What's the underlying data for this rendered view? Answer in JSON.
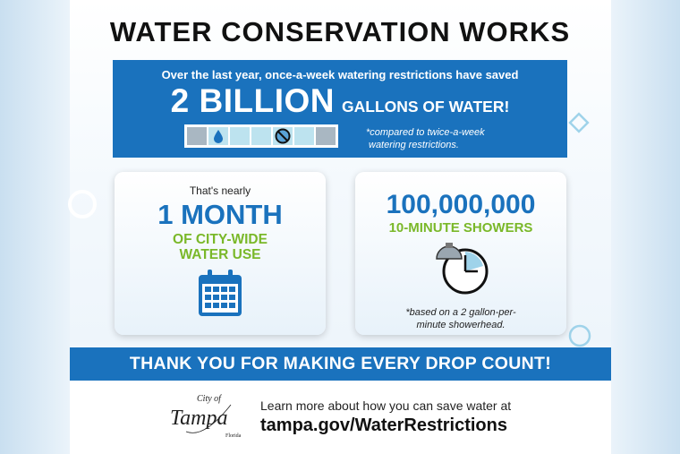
{
  "title": "WATER CONSERVATION WORKS",
  "hero": {
    "line1_pre": "Over the last year, once-a-week watering restrictions have ",
    "line1_bold": "saved",
    "big": "2 BILLION",
    "unit": "GALLONS OF WATER!",
    "note_line1": "*compared to twice-a-week",
    "note_line2": "watering restrictions."
  },
  "card1": {
    "pre": "That's nearly",
    "big": "1 MONTH",
    "sub1": "OF CITY-WIDE",
    "sub2": "WATER USE",
    "icon": "calendar-icon"
  },
  "card2": {
    "big": "100,000,000",
    "sub": "10-MINUTE SHOWERS",
    "icon": "shower-clock-icon",
    "note_line1": "*based on a 2 gallon-per-",
    "note_line2": "minute showerhead."
  },
  "band": "THANK YOU FOR MAKING EVERY DROP COUNT!",
  "footer": {
    "logo_text": "City of Tampa Florida",
    "learn": "Learn more about how you can save water at",
    "url": "tampa.gov/WaterRestrictions"
  },
  "colors": {
    "brand_blue": "#1a72bd",
    "green": "#7ab829"
  }
}
